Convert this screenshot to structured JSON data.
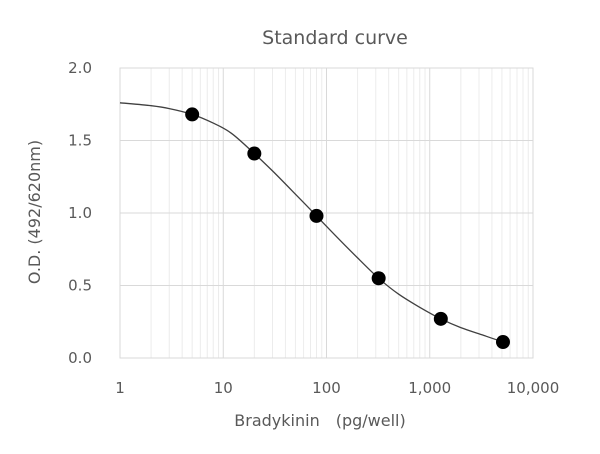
{
  "chart_data": {
    "type": "scatter",
    "title": "Standard curve",
    "xlabel": "Bradykinin　(pg/well)",
    "ylabel": "O.D. (492/620nm)",
    "x_scale": "log",
    "xlim": [
      1,
      10000
    ],
    "ylim": [
      0,
      2.0
    ],
    "x_tick_labels": [
      "1",
      "10",
      "100",
      "1,000",
      "10,000"
    ],
    "x_tick_values": [
      1,
      10,
      100,
      1000,
      10000
    ],
    "y_tick_labels": [
      "0.0",
      "0.5",
      "1.0",
      "1.5",
      "2.0"
    ],
    "y_tick_values": [
      0,
      0.5,
      1.0,
      1.5,
      2.0
    ],
    "grid": true,
    "series": [
      {
        "x": [
          5,
          20,
          80,
          320,
          1280,
          5120
        ],
        "y": [
          1.68,
          1.41,
          0.98,
          0.55,
          0.27,
          0.11
        ]
      }
    ],
    "fit_curve": {
      "x": [
        1,
        2,
        3,
        5,
        8,
        12,
        20,
        30,
        50,
        80,
        120,
        200,
        320,
        500,
        800,
        1280,
        2000,
        3200,
        5120
      ],
      "y": [
        1.76,
        1.74,
        1.72,
        1.68,
        1.62,
        1.55,
        1.41,
        1.29,
        1.13,
        0.98,
        0.85,
        0.69,
        0.55,
        0.44,
        0.35,
        0.27,
        0.21,
        0.16,
        0.11
      ]
    },
    "colors": {
      "marker": "#000000",
      "line": "#404040",
      "grid_major": "#d9d9d9",
      "grid_minor": "#ececec",
      "text": "#595959"
    }
  }
}
